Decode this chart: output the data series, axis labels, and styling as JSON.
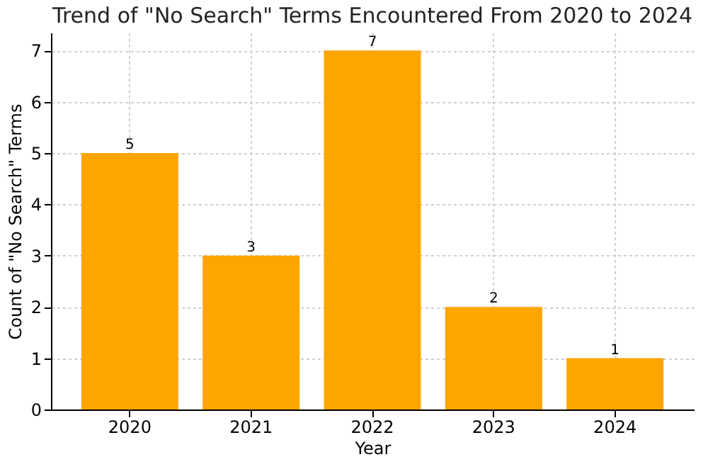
{
  "chart_data": {
    "type": "bar",
    "title": "Trend of \"No Search\" Terms Encountered From 2020 to 2024",
    "xlabel": "Year",
    "ylabel": "Count of \"No Search\" Terms",
    "categories": [
      "2020",
      "2021",
      "2022",
      "2023",
      "2024"
    ],
    "values": [
      5,
      3,
      7,
      2,
      1
    ],
    "color": "#ffa500",
    "ylim": [
      0,
      7.35
    ],
    "yticks": [
      0,
      1,
      2,
      3,
      4,
      5,
      6,
      7
    ],
    "grid": true,
    "data_labels": true
  }
}
